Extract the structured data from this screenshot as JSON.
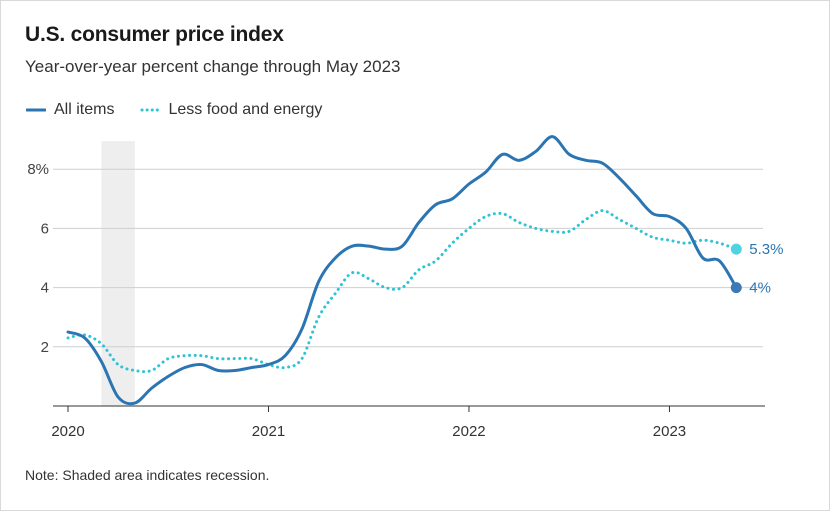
{
  "chart_data": {
    "type": "line",
    "title": "U.S. consumer price index",
    "subtitle": "Year-over-year percent change through May 2023",
    "note": "Note: Shaded area indicates recession.",
    "xlabel": "",
    "ylabel": "",
    "x_domain": [
      2020.0,
      2023.4167
    ],
    "ylim": [
      0,
      9
    ],
    "y_ticks": [
      2,
      4,
      6,
      8
    ],
    "y_tick_labels": [
      "2",
      "4",
      "6",
      "8%"
    ],
    "x_ticks": [
      2020,
      2021,
      2022,
      2023
    ],
    "x_tick_labels": [
      "2020",
      "2021",
      "2022",
      "2023"
    ],
    "recession": [
      2020.1667,
      2020.3333
    ],
    "grid": true,
    "legend_position": "top-left",
    "series": [
      {
        "name": "All items",
        "color": "#2b76b2",
        "style": "solid",
        "end_label": "4%",
        "x": [
          2020.0,
          2020.0833,
          2020.1667,
          2020.25,
          2020.3333,
          2020.4167,
          2020.5,
          2020.5833,
          2020.6667,
          2020.75,
          2020.8333,
          2020.9167,
          2021.0,
          2021.0833,
          2021.1667,
          2021.25,
          2021.3333,
          2021.4167,
          2021.5,
          2021.5833,
          2021.6667,
          2021.75,
          2021.8333,
          2021.9167,
          2022.0,
          2022.0833,
          2022.1667,
          2022.25,
          2022.3333,
          2022.4167,
          2022.5,
          2022.5833,
          2022.6667,
          2022.75,
          2022.8333,
          2022.9167,
          2023.0,
          2023.0833,
          2023.1667,
          2023.25,
          2023.3333
        ],
        "y": [
          2.5,
          2.3,
          1.5,
          0.3,
          0.1,
          0.6,
          1.0,
          1.3,
          1.4,
          1.2,
          1.2,
          1.3,
          1.4,
          1.7,
          2.6,
          4.2,
          5.0,
          5.4,
          5.4,
          5.3,
          5.4,
          6.2,
          6.8,
          7.0,
          7.5,
          7.9,
          8.5,
          8.3,
          8.6,
          9.1,
          8.5,
          8.3,
          8.2,
          7.7,
          7.1,
          6.5,
          6.4,
          6.0,
          5.0,
          4.9,
          4.0
        ]
      },
      {
        "name": "Less food and energy",
        "color": "#2ec4d6",
        "style": "dotted",
        "end_label": "5.3%",
        "x": [
          2020.0,
          2020.0833,
          2020.1667,
          2020.25,
          2020.3333,
          2020.4167,
          2020.5,
          2020.5833,
          2020.6667,
          2020.75,
          2020.8333,
          2020.9167,
          2021.0,
          2021.0833,
          2021.1667,
          2021.25,
          2021.3333,
          2021.4167,
          2021.5,
          2021.5833,
          2021.6667,
          2021.75,
          2021.8333,
          2021.9167,
          2022.0,
          2022.0833,
          2022.1667,
          2022.25,
          2022.3333,
          2022.4167,
          2022.5,
          2022.5833,
          2022.6667,
          2022.75,
          2022.8333,
          2022.9167,
          2023.0,
          2023.0833,
          2023.1667,
          2023.25,
          2023.3333
        ],
        "y": [
          2.3,
          2.4,
          2.1,
          1.4,
          1.2,
          1.2,
          1.6,
          1.7,
          1.7,
          1.6,
          1.6,
          1.6,
          1.4,
          1.3,
          1.6,
          3.0,
          3.8,
          4.5,
          4.3,
          4.0,
          4.0,
          4.6,
          4.9,
          5.5,
          6.0,
          6.4,
          6.5,
          6.2,
          6.0,
          5.9,
          5.9,
          6.3,
          6.6,
          6.3,
          6.0,
          5.7,
          5.6,
          5.5,
          5.6,
          5.5,
          5.3
        ]
      }
    ]
  }
}
